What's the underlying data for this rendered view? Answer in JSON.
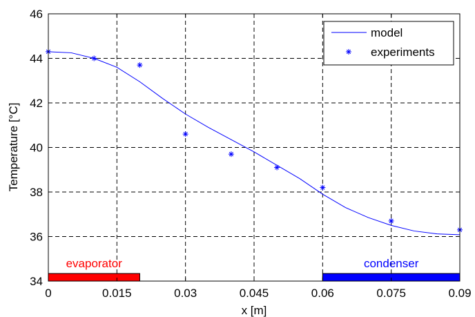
{
  "chart_data": {
    "type": "line",
    "title": "",
    "xlabel": "x [m]",
    "ylabel": "Temperature [°C]",
    "xlim": [
      0,
      0.09
    ],
    "ylim": [
      34,
      46
    ],
    "xticks": [
      0,
      0.015,
      0.03,
      0.045,
      0.06,
      0.075,
      0.09
    ],
    "xtick_labels": [
      "0",
      "0.015",
      "0.03",
      "0.045",
      "0.06",
      "0.075",
      "0.09"
    ],
    "yticks": [
      34,
      36,
      38,
      40,
      42,
      44,
      46
    ],
    "ytick_labels": [
      "34",
      "36",
      "38",
      "40",
      "42",
      "44",
      "46"
    ],
    "grid": true,
    "legend_position": "top-right",
    "series": [
      {
        "name": "model",
        "kind": "line",
        "color": "#0000ff",
        "x": [
          0,
          0.005,
          0.01,
          0.015,
          0.02,
          0.025,
          0.03,
          0.035,
          0.04,
          0.045,
          0.05,
          0.055,
          0.06,
          0.065,
          0.07,
          0.075,
          0.08,
          0.085,
          0.09
        ],
        "y": [
          44.3,
          44.25,
          44.0,
          43.6,
          42.95,
          42.2,
          41.5,
          40.9,
          40.35,
          39.8,
          39.2,
          38.6,
          37.9,
          37.3,
          36.85,
          36.5,
          36.25,
          36.12,
          36.08
        ]
      },
      {
        "name": "experiments",
        "kind": "markers",
        "marker": "*",
        "color": "#0000ff",
        "x": [
          0,
          0.01,
          0.02,
          0.03,
          0.04,
          0.05,
          0.06,
          0.075,
          0.09
        ],
        "y": [
          44.3,
          44.0,
          43.7,
          40.6,
          39.7,
          39.1,
          38.2,
          36.7,
          36.3
        ]
      }
    ],
    "regions": [
      {
        "label": "evaporator",
        "x_start": 0,
        "x_end": 0.02,
        "color": "#ff0000"
      },
      {
        "label": "condenser",
        "x_start": 0.06,
        "x_end": 0.09,
        "color": "#0000ff"
      }
    ]
  }
}
